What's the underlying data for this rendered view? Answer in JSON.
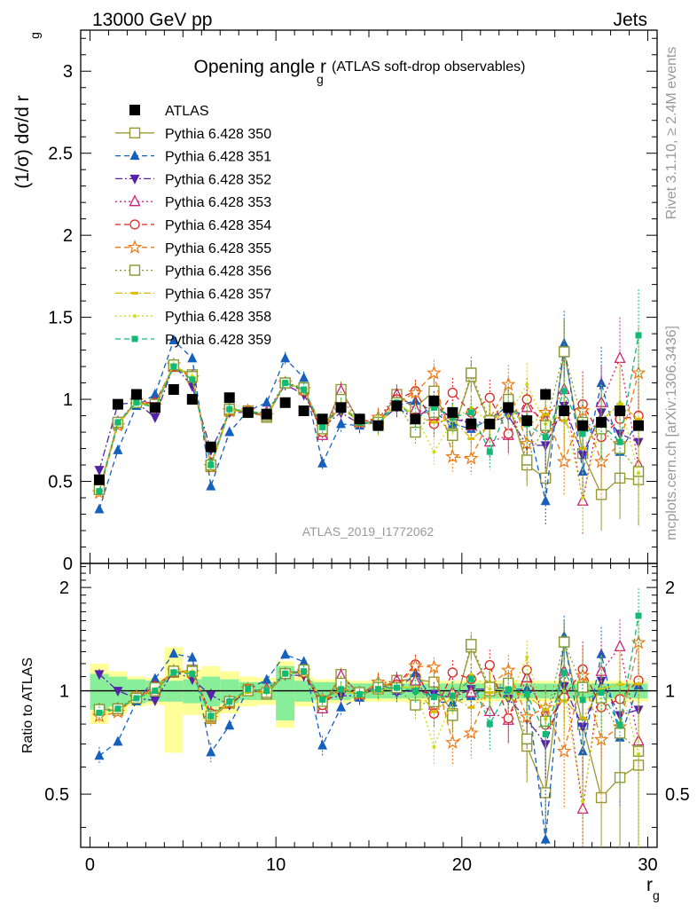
{
  "header": {
    "left": "13000 GeV pp",
    "right": "Jets"
  },
  "side_labels": {
    "rivet": "Rivet 3.1.10, ≥ 2.4M events",
    "mcplots": "mcplots.cern.ch [arXiv:1306.3436]"
  },
  "chart_data": {
    "type": "scatter",
    "title_main": "Opening angle r",
    "title_sub": "g",
    "title_paren": "(ATLAS soft-drop observables)",
    "analysis_id": "ATLAS_2019_I1772062",
    "ylabel": "(1/σ) dσ/d r",
    "ylabel_sub": "g",
    "ratio_ylabel": "Ratio to ATLAS",
    "xlabel": "r",
    "xlabel_sub": "g",
    "xlim": [
      -0.5,
      30.5
    ],
    "ylim": [
      0,
      3.25
    ],
    "ratio_ylim": [
      0.35,
      2.35
    ],
    "x_ticks": [
      "0",
      "10",
      "20",
      "30"
    ],
    "y_ticks": [
      "0",
      "0.5",
      "1",
      "1.5",
      "2",
      "2.5",
      "3"
    ],
    "ratio_ticks": [
      "0.5",
      "1",
      "2"
    ],
    "grid": false,
    "legend_position": "top-left",
    "x": [
      0.5,
      1.5,
      2.5,
      3.5,
      4.5,
      5.5,
      6.5,
      7.5,
      8.5,
      9.5,
      10.5,
      11.5,
      12.5,
      13.5,
      14.5,
      15.5,
      16.5,
      17.5,
      18.5,
      19.5,
      20.5,
      21.5,
      22.5,
      23.5,
      24.5,
      25.5,
      26.5,
      27.5,
      28.5,
      29.5
    ],
    "data": {
      "name": "ATLAS",
      "values": [
        0.51,
        0.97,
        1.03,
        0.95,
        1.06,
        1.0,
        0.71,
        1.01,
        0.92,
        0.91,
        0.98,
        0.93,
        0.88,
        0.95,
        0.88,
        0.84,
        0.96,
        0.88,
        0.99,
        0.92,
        0.85,
        0.85,
        0.95,
        0.87,
        1.03,
        0.93,
        0.84,
        0.86,
        0.93,
        0.84
      ],
      "band_inner": [
        0.12,
        0.1,
        0.08,
        0.07,
        0.07,
        0.08,
        0.1,
        0.08,
        0.06,
        0.06,
        0.18,
        0.07,
        0.06,
        0.06,
        0.05,
        0.05,
        0.05,
        0.05,
        0.05,
        0.05,
        0.05,
        0.05,
        0.05,
        0.05,
        0.05,
        0.05,
        0.05,
        0.05,
        0.05,
        0.05
      ],
      "band_outer": [
        0.2,
        0.14,
        0.1,
        0.09,
        0.34,
        0.15,
        0.18,
        0.14,
        0.1,
        0.09,
        0.22,
        0.1,
        0.08,
        0.08,
        0.07,
        0.07,
        0.07,
        0.08,
        0.07,
        0.07,
        0.07,
        0.07,
        0.07,
        0.07,
        0.07,
        0.07,
        0.07,
        0.07,
        0.07,
        0.07
      ]
    },
    "series": [
      {
        "name": "Pythia 6.428 350",
        "color": "#999933",
        "marker": "square-open",
        "dash": "solid",
        "values": [
          0.45,
          0.85,
          0.99,
          0.95,
          1.2,
          1.15,
          0.59,
          0.93,
          0.93,
          0.89,
          1.1,
          1.06,
          0.79,
          1.06,
          0.86,
          0.85,
          1.03,
          0.95,
          1.05,
          0.79,
          1.14,
          0.85,
          0.98,
          0.6,
          0.52,
          1.29,
          0.67,
          0.42,
          0.52,
          0.51
        ],
        "errors": [
          0.02,
          0.02,
          0.02,
          0.02,
          0.02,
          0.02,
          0.03,
          0.03,
          0.03,
          0.03,
          0.04,
          0.04,
          0.04,
          0.05,
          0.05,
          0.06,
          0.06,
          0.07,
          0.08,
          0.09,
          0.1,
          0.11,
          0.12,
          0.13,
          0.15,
          0.2,
          0.2,
          0.22,
          0.25,
          0.28
        ]
      },
      {
        "name": "Pythia 6.428 351",
        "color": "#1560bd",
        "marker": "triangle-up",
        "dash": "dashed",
        "values": [
          0.33,
          0.69,
          0.96,
          1.03,
          1.36,
          1.25,
          0.47,
          0.8,
          0.93,
          0.98,
          1.25,
          1.13,
          0.61,
          0.85,
          0.84,
          0.88,
          0.96,
          0.99,
          0.92,
          0.85,
          0.82,
          0.88,
          0.96,
          0.88,
          0.38,
          1.34,
          0.56,
          1.1,
          0.68,
          0.87
        ],
        "errors": [
          0.02,
          0.02,
          0.02,
          0.02,
          0.02,
          0.02,
          0.03,
          0.03,
          0.03,
          0.03,
          0.04,
          0.04,
          0.04,
          0.05,
          0.05,
          0.06,
          0.06,
          0.07,
          0.08,
          0.09,
          0.1,
          0.11,
          0.12,
          0.13,
          0.15,
          0.2,
          0.2,
          0.22,
          0.25,
          0.28
        ]
      },
      {
        "name": "Pythia 6.428 352",
        "color": "#5522aa",
        "marker": "triangle-down",
        "dash": "dashdot",
        "values": [
          0.57,
          0.97,
          0.98,
          0.89,
          1.21,
          1.08,
          0.69,
          0.92,
          0.92,
          0.9,
          1.09,
          1.03,
          0.83,
          0.92,
          0.85,
          0.86,
          0.95,
          0.88,
          0.97,
          0.88,
          0.86,
          0.86,
          0.9,
          0.72,
          0.72,
          0.96,
          0.66,
          0.92,
          0.79,
          0.74
        ],
        "errors": [
          0.02,
          0.02,
          0.02,
          0.02,
          0.02,
          0.02,
          0.03,
          0.03,
          0.03,
          0.03,
          0.04,
          0.04,
          0.04,
          0.05,
          0.05,
          0.06,
          0.06,
          0.07,
          0.08,
          0.09,
          0.1,
          0.11,
          0.12,
          0.13,
          0.15,
          0.2,
          0.2,
          0.22,
          0.25,
          0.28
        ]
      },
      {
        "name": "Pythia 6.428 353",
        "color": "#cc2277",
        "marker": "triangle-up-open",
        "dash": "dotted",
        "values": [
          0.45,
          0.86,
          0.99,
          0.98,
          1.2,
          1.14,
          0.61,
          0.94,
          0.92,
          0.92,
          1.1,
          1.07,
          0.78,
          1.05,
          0.86,
          0.88,
          1.03,
          0.94,
          0.9,
          0.91,
          0.84,
          0.74,
          0.78,
          0.95,
          0.87,
          1.06,
          0.38,
          0.98,
          1.25,
          0.6
        ],
        "errors": [
          0.02,
          0.02,
          0.02,
          0.02,
          0.02,
          0.02,
          0.03,
          0.03,
          0.03,
          0.03,
          0.04,
          0.04,
          0.04,
          0.05,
          0.05,
          0.06,
          0.06,
          0.07,
          0.08,
          0.09,
          0.1,
          0.11,
          0.12,
          0.13,
          0.15,
          0.2,
          0.2,
          0.22,
          0.25,
          0.28
        ]
      },
      {
        "name": "Pythia 6.428 354",
        "color": "#dd2222",
        "marker": "circle-open",
        "dash": "dashed",
        "values": [
          0.45,
          0.85,
          0.98,
          0.98,
          1.2,
          1.13,
          0.61,
          0.93,
          0.93,
          0.9,
          1.1,
          1.05,
          0.8,
          0.97,
          0.86,
          0.88,
          1.0,
          1.05,
          0.85,
          1.04,
          0.92,
          1.01,
          0.79,
          1.0,
          0.82,
          0.89,
          0.97,
          0.77,
          0.88,
          0.9
        ],
        "errors": [
          0.02,
          0.02,
          0.02,
          0.02,
          0.02,
          0.02,
          0.03,
          0.03,
          0.03,
          0.03,
          0.04,
          0.04,
          0.04,
          0.05,
          0.05,
          0.06,
          0.06,
          0.07,
          0.08,
          0.09,
          0.1,
          0.11,
          0.12,
          0.13,
          0.15,
          0.2,
          0.2,
          0.22,
          0.25,
          0.28
        ]
      },
      {
        "name": "Pythia 6.428 355",
        "color": "#ee7711",
        "marker": "star-open",
        "dash": "dashed",
        "values": [
          0.43,
          0.84,
          0.99,
          0.96,
          1.21,
          1.13,
          0.59,
          0.93,
          0.93,
          0.9,
          1.1,
          1.06,
          0.83,
          0.97,
          0.86,
          0.89,
          0.98,
          1.04,
          1.16,
          0.65,
          0.64,
          0.88,
          1.09,
          0.73,
          0.92,
          0.62,
          0.93,
          0.62,
          0.73,
          1.16
        ],
        "errors": [
          0.02,
          0.02,
          0.02,
          0.02,
          0.02,
          0.02,
          0.03,
          0.03,
          0.03,
          0.03,
          0.04,
          0.04,
          0.04,
          0.05,
          0.05,
          0.06,
          0.06,
          0.07,
          0.08,
          0.09,
          0.1,
          0.11,
          0.12,
          0.13,
          0.15,
          0.2,
          0.2,
          0.22,
          0.25,
          0.28
        ]
      },
      {
        "name": "Pythia 6.428 356",
        "color": "#889933",
        "marker": "square-open",
        "dash": "dotted",
        "values": [
          0.45,
          0.86,
          0.98,
          0.97,
          1.21,
          1.14,
          0.6,
          0.94,
          0.92,
          0.9,
          1.1,
          1.07,
          0.82,
          1.0,
          0.87,
          0.86,
          0.98,
          0.8,
          0.92,
          0.78,
          1.16,
          0.87,
          1.0,
          0.63,
          0.84,
          1.29,
          0.86,
          0.82,
          0.7,
          0.56
        ],
        "errors": [
          0.02,
          0.02,
          0.02,
          0.02,
          0.02,
          0.02,
          0.03,
          0.03,
          0.03,
          0.03,
          0.04,
          0.04,
          0.04,
          0.05,
          0.05,
          0.06,
          0.06,
          0.07,
          0.08,
          0.09,
          0.1,
          0.11,
          0.12,
          0.13,
          0.15,
          0.2,
          0.2,
          0.22,
          0.25,
          0.28
        ]
      },
      {
        "name": "Pythia 6.428 357",
        "color": "#ddbb00",
        "marker": "dash-tick",
        "dash": "dashdot",
        "values": [
          0.44,
          0.85,
          0.98,
          0.95,
          1.21,
          1.13,
          0.59,
          0.94,
          0.91,
          0.9,
          1.1,
          1.06,
          0.83,
          0.95,
          0.86,
          0.84,
          0.98,
          0.9,
          0.86,
          0.88,
          0.76,
          0.84,
          0.95,
          0.84,
          0.91,
          0.87,
          0.7,
          0.87,
          0.97,
          0.88
        ],
        "errors": [
          0.02,
          0.02,
          0.02,
          0.02,
          0.02,
          0.02,
          0.03,
          0.03,
          0.03,
          0.03,
          0.04,
          0.04,
          0.04,
          0.05,
          0.05,
          0.06,
          0.06,
          0.07,
          0.08,
          0.09,
          0.1,
          0.11,
          0.12,
          0.13,
          0.15,
          0.2,
          0.2,
          0.22,
          0.25,
          0.28
        ]
      },
      {
        "name": "Pythia 6.428 358",
        "color": "#ccdd11",
        "marker": "dot",
        "dash": "dotted",
        "values": [
          0.44,
          0.86,
          0.98,
          0.96,
          1.21,
          1.14,
          0.6,
          0.94,
          0.93,
          0.91,
          1.1,
          1.06,
          0.82,
          0.96,
          0.87,
          0.85,
          0.98,
          0.9,
          0.68,
          0.87,
          0.95,
          0.86,
          0.9,
          1.09,
          0.85,
          0.93,
          0.4,
          0.87,
          0.98,
          0.55
        ],
        "errors": [
          0.02,
          0.02,
          0.02,
          0.02,
          0.02,
          0.02,
          0.03,
          0.03,
          0.03,
          0.03,
          0.04,
          0.04,
          0.04,
          0.05,
          0.05,
          0.06,
          0.06,
          0.07,
          0.08,
          0.09,
          0.1,
          0.11,
          0.12,
          0.13,
          0.15,
          0.2,
          0.2,
          0.22,
          0.25,
          0.28
        ]
      },
      {
        "name": "Pythia 6.428 359",
        "color": "#11bb77",
        "marker": "square-small",
        "dash": "dashed",
        "values": [
          0.44,
          0.86,
          0.98,
          0.95,
          1.2,
          1.12,
          0.6,
          0.94,
          0.93,
          0.91,
          1.1,
          1.06,
          0.83,
          0.96,
          0.86,
          0.85,
          0.98,
          0.88,
          0.95,
          0.89,
          0.92,
          0.68,
          0.96,
          0.85,
          0.77,
          1.05,
          0.79,
          0.85,
          0.74,
          1.39
        ],
        "errors": [
          0.02,
          0.02,
          0.02,
          0.02,
          0.02,
          0.02,
          0.03,
          0.03,
          0.03,
          0.03,
          0.04,
          0.04,
          0.04,
          0.05,
          0.05,
          0.06,
          0.06,
          0.07,
          0.08,
          0.09,
          0.1,
          0.11,
          0.12,
          0.13,
          0.15,
          0.2,
          0.2,
          0.22,
          0.25,
          0.28
        ]
      }
    ],
    "colors": {
      "band_inner": "#88ee99",
      "band_outer": "#ffff99",
      "data": "#000000",
      "axis": "#000000",
      "label_grey": "#999999"
    }
  }
}
